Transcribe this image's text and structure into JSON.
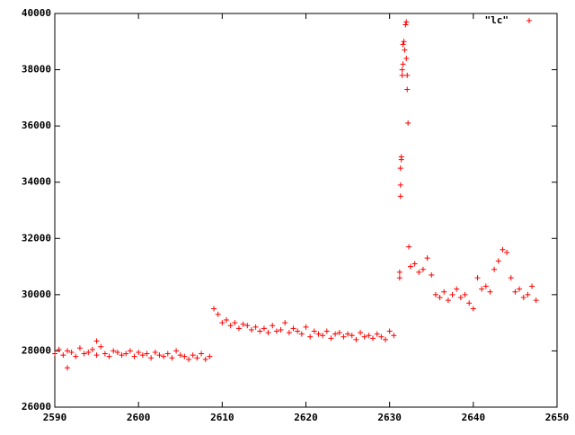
{
  "chart_data": {
    "type": "scatter",
    "xlim": [
      2590,
      2650
    ],
    "xticks": [
      2590,
      2600,
      2610,
      2620,
      2630,
      2640,
      2650
    ],
    "ylim": [
      26000,
      40000
    ],
    "yticks": [
      26000,
      28000,
      30000,
      32000,
      34000,
      36000,
      38000,
      40000
    ],
    "legend": "top-right",
    "series": [
      {
        "name": "\"lc\"",
        "color": "#ff0000",
        "x": [
          2590.0,
          2590.5,
          2591.0,
          2591.5,
          2592.0,
          2592.5,
          2593.0,
          2593.5,
          2594.0,
          2594.5,
          2595.0,
          2595.5,
          2596.0,
          2596.5,
          2597.0,
          2597.5,
          2598.0,
          2598.5,
          2599.0,
          2599.5,
          2600.0,
          2600.5,
          2601.0,
          2601.5,
          2602.0,
          2602.5,
          2603.0,
          2603.5,
          2604.0,
          2604.5,
          2605.0,
          2605.5,
          2606.0,
          2606.5,
          2607.0,
          2607.5,
          2608.0,
          2608.5,
          2591.5,
          2595.0,
          2609.0,
          2609.5,
          2610.0,
          2610.5,
          2611.0,
          2611.5,
          2612.0,
          2612.5,
          2613.0,
          2613.5,
          2614.0,
          2614.5,
          2615.0,
          2615.5,
          2616.0,
          2616.5,
          2617.0,
          2617.5,
          2618.0,
          2618.5,
          2619.0,
          2619.5,
          2620.0,
          2620.5,
          2621.0,
          2621.5,
          2622.0,
          2622.5,
          2623.0,
          2623.5,
          2624.0,
          2624.5,
          2625.0,
          2625.5,
          2626.0,
          2626.5,
          2627.0,
          2627.5,
          2628.0,
          2628.5,
          2629.0,
          2629.5,
          2630.0,
          2630.5,
          2631.2,
          2631.2,
          2631.3,
          2631.3,
          2631.3,
          2631.4,
          2631.4,
          2631.5,
          2631.6,
          2631.7,
          2631.8,
          2631.9,
          2632.0,
          2632.0,
          2632.1,
          2632.1,
          2632.2,
          2631.5,
          2631.6,
          2632.3,
          2632.5,
          2633.0,
          2633.5,
          2634.0,
          2634.5,
          2635.0,
          2635.5,
          2636.0,
          2636.5,
          2637.0,
          2637.5,
          2638.0,
          2638.5,
          2639.0,
          2639.5,
          2640.0,
          2640.5,
          2641.0,
          2641.5,
          2642.0,
          2642.5,
          2643.0,
          2643.5,
          2644.0,
          2644.5,
          2645.0,
          2645.5,
          2646.0,
          2646.5,
          2647.0,
          2647.5
        ],
        "values": [
          27900,
          28050,
          27850,
          28000,
          27950,
          27800,
          28100,
          27900,
          27950,
          28050,
          27850,
          28150,
          27900,
          27800,
          28000,
          27950,
          27850,
          27900,
          28000,
          27800,
          27950,
          27850,
          27900,
          27750,
          27950,
          27850,
          27800,
          27900,
          27750,
          28000,
          27850,
          27800,
          27700,
          27850,
          27750,
          27900,
          27700,
          27800,
          27400,
          28350,
          29500,
          29300,
          29000,
          29100,
          28900,
          29000,
          28800,
          28950,
          28900,
          28750,
          28850,
          28700,
          28800,
          28650,
          28900,
          28700,
          28750,
          29000,
          28650,
          28800,
          28700,
          28600,
          28850,
          28500,
          28700,
          28600,
          28550,
          28700,
          28450,
          28600,
          28650,
          28500,
          28600,
          28550,
          28400,
          28650,
          28500,
          28550,
          28450,
          28600,
          28500,
          28400,
          28700,
          28550,
          30600,
          30800,
          33500,
          33900,
          34500,
          34800,
          34900,
          38000,
          38900,
          39000,
          38700,
          39600,
          39700,
          38400,
          37800,
          37300,
          36100,
          37800,
          38200,
          31700,
          31000,
          31100,
          30800,
          30900,
          31300,
          30700,
          30000,
          29900,
          30100,
          29800,
          30000,
          30200,
          29900,
          30000,
          29700,
          29500,
          30600,
          30200,
          30300,
          30100,
          30900,
          31200,
          31600,
          31500,
          30600,
          30100,
          30200,
          29900,
          30000,
          30300,
          29800
        ]
      }
    ]
  }
}
